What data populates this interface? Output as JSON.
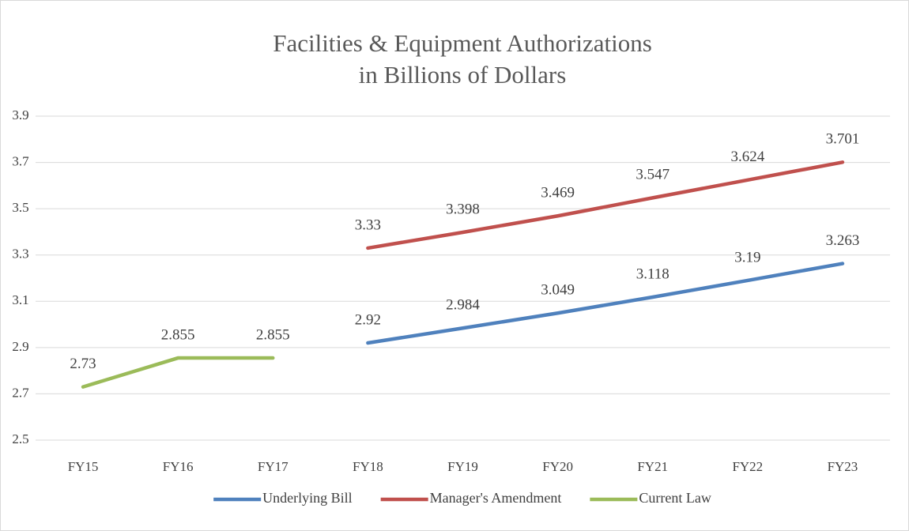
{
  "chart_data": {
    "type": "line",
    "title": [
      "Facilities & Equipment Authorizations",
      "in Billions of Dollars"
    ],
    "categories": [
      "FY15",
      "FY16",
      "FY17",
      "FY18",
      "FY19",
      "FY20",
      "FY21",
      "FY22",
      "FY23"
    ],
    "series": [
      {
        "name": "Underlying Bill",
        "color": "#4f81bd",
        "values": [
          null,
          null,
          null,
          2.92,
          2.984,
          3.049,
          3.118,
          3.19,
          3.263
        ]
      },
      {
        "name": "Manager's Amendment",
        "color": "#c0504d",
        "values": [
          null,
          null,
          null,
          3.33,
          3.398,
          3.469,
          3.547,
          3.624,
          3.701
        ]
      },
      {
        "name": "Current Law",
        "color": "#9bbb59",
        "values": [
          2.73,
          2.855,
          2.855,
          null,
          null,
          null,
          null,
          null,
          null
        ]
      }
    ],
    "ylim": [
      2.5,
      3.9
    ],
    "yticks": [
      2.5,
      2.7,
      2.9,
      3.1,
      3.3,
      3.5,
      3.7,
      3.9
    ],
    "grid": true,
    "legend": "bottom"
  }
}
